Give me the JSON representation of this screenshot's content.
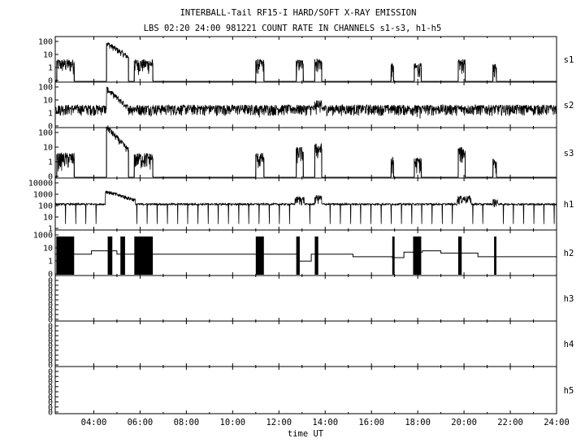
{
  "chart_data": {
    "type": "line",
    "title": "INTERBALL-Tail RF15-I HARD/SOFT X-RAY EMISSION",
    "subtitle": "LBS 02:20 24:00 981221  COUNT RATE IN CHANNELS s1-s3, h1-h5",
    "xlabel": "time UT",
    "x_range_hours": [
      2.333,
      24.0
    ],
    "x_ticks": [
      "04:00",
      "06:00",
      "08:00",
      "10:00",
      "12:00",
      "14:00",
      "16:00",
      "18:00",
      "20:00",
      "22:00",
      "24:00"
    ],
    "panels": [
      {
        "name": "s1",
        "y_ticks": [
          "100",
          "10",
          "1",
          "0"
        ],
        "baseline": 0,
        "bursts": [
          {
            "start": 2.4,
            "end": 3.15,
            "level": 5
          },
          {
            "start": 4.55,
            "end": 5.5,
            "peak": 80,
            "decay": 10,
            "level": 12
          },
          {
            "start": 5.75,
            "end": 6.55,
            "level": 5
          },
          {
            "start": 11.0,
            "end": 11.35,
            "level": 5
          },
          {
            "start": 12.75,
            "end": 13.05,
            "level": 5
          },
          {
            "start": 13.55,
            "end": 13.85,
            "level": 6
          },
          {
            "start": 16.85,
            "end": 16.95,
            "level": 3
          },
          {
            "start": 17.85,
            "end": 18.15,
            "level": 3
          },
          {
            "start": 19.75,
            "end": 20.05,
            "level": 5
          },
          {
            "start": 21.25,
            "end": 21.4,
            "level": 3
          }
        ]
      },
      {
        "name": "s2",
        "y_ticks": [
          "100",
          "10",
          "1",
          "0"
        ],
        "baseline": 5,
        "noise": true,
        "bursts": [
          {
            "start": 4.55,
            "end": 5.5,
            "peak": 80,
            "decay": 10,
            "level": 6
          },
          {
            "start": 11.0,
            "end": 11.35,
            "level": 5
          },
          {
            "start": 13.55,
            "end": 13.85,
            "level": 10
          },
          {
            "start": 17.85,
            "end": 18.15,
            "level": 5
          }
        ]
      },
      {
        "name": "s3",
        "y_ticks": [
          "100",
          "10",
          "1",
          "0"
        ],
        "baseline": 0,
        "bursts": [
          {
            "start": 2.4,
            "end": 3.15,
            "level": 5
          },
          {
            "start": 4.55,
            "end": 5.5,
            "peak": 200,
            "decay": 10,
            "level": 12
          },
          {
            "start": 5.75,
            "end": 6.55,
            "level": 5
          },
          {
            "start": 11.0,
            "end": 11.35,
            "level": 5
          },
          {
            "start": 12.75,
            "end": 13.05,
            "level": 10
          },
          {
            "start": 13.55,
            "end": 13.85,
            "level": 15
          },
          {
            "start": 16.85,
            "end": 16.95,
            "level": 3
          },
          {
            "start": 17.85,
            "end": 18.15,
            "level": 3
          },
          {
            "start": 19.75,
            "end": 20.05,
            "level": 10
          },
          {
            "start": 21.25,
            "end": 21.4,
            "level": 3
          }
        ]
      },
      {
        "name": "h1",
        "y_ticks": [
          "10000",
          "1000",
          "100",
          "10",
          "1"
        ],
        "baseline": 80,
        "dropouts_every": 0.44,
        "bursts": [
          {
            "start": 4.5,
            "end": 5.8,
            "peak": 1500,
            "decay": 5,
            "level": 200
          },
          {
            "start": 12.7,
            "end": 13.1,
            "level": 250
          },
          {
            "start": 13.55,
            "end": 13.85,
            "level": 350
          },
          {
            "start": 19.7,
            "end": 20.3,
            "level": 300
          },
          {
            "start": 21.25,
            "end": 21.45,
            "level": 150
          }
        ]
      },
      {
        "name": "h2",
        "y_ticks": [
          "1000",
          "10",
          "1",
          "0"
        ],
        "baseline": 10,
        "steps": [
          [
            2.33,
            20
          ],
          [
            3.9,
            40
          ],
          [
            5.0,
            20
          ],
          [
            11.8,
            20
          ],
          [
            12.8,
            5
          ],
          [
            13.4,
            20
          ],
          [
            15.2,
            12
          ],
          [
            16.9,
            10
          ],
          [
            17.4,
            30
          ],
          [
            18.2,
            40
          ],
          [
            19.0,
            25
          ],
          [
            20.6,
            12
          ]
        ],
        "solid_blocks": [
          [
            2.38,
            3.15
          ],
          [
            4.6,
            4.8
          ],
          [
            5.15,
            5.35
          ],
          [
            5.75,
            6.55
          ],
          [
            11.0,
            11.35
          ],
          [
            12.75,
            12.9
          ],
          [
            13.55,
            13.7
          ],
          [
            16.9,
            17.0
          ],
          [
            17.8,
            18.15
          ],
          [
            19.75,
            19.9
          ],
          [
            21.3,
            21.4
          ]
        ]
      },
      {
        "name": "h3",
        "y_ticks": [
          "0",
          "0",
          "0",
          "0",
          "0",
          "0",
          "0",
          "0",
          "0"
        ]
      },
      {
        "name": "h4",
        "y_ticks": [
          "0",
          "0",
          "0",
          "0",
          "0",
          "0",
          "0",
          "0",
          "0"
        ]
      },
      {
        "name": "h5",
        "y_ticks": [
          "0",
          "0",
          "0",
          "0",
          "0",
          "0",
          "0",
          "0",
          "0"
        ]
      }
    ]
  }
}
